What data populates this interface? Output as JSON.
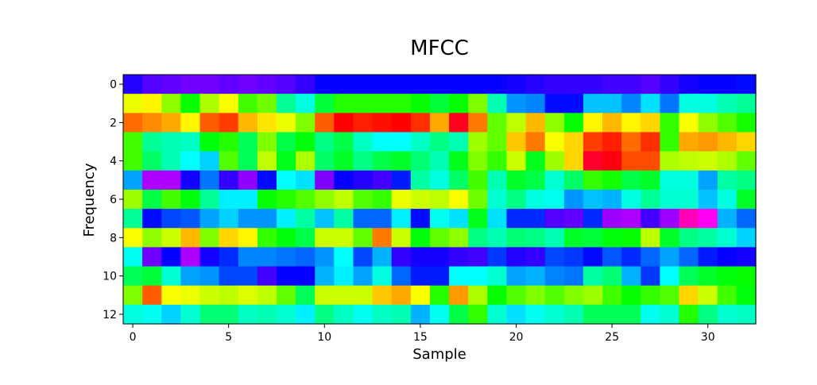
{
  "chart_data": {
    "type": "heatmap",
    "title": "MFCC",
    "xlabel": "Sample",
    "ylabel": "Frequency",
    "x_ticks": [
      "0",
      "5",
      "10",
      "15",
      "20",
      "25",
      "30"
    ],
    "y_ticks": [
      "0",
      "2",
      "4",
      "6",
      "8",
      "10",
      "12"
    ],
    "n_cols": 33,
    "n_rows": 13,
    "colormap": "hsv (value 0 = red, 0.25 = yellow-green, 0.5 = cyan, 0.75 = blue/violet)",
    "values": [
      [
        0.69,
        0.72,
        0.73,
        0.74,
        0.74,
        0.73,
        0.74,
        0.73,
        0.72,
        0.7,
        0.67,
        0.67,
        0.67,
        0.67,
        0.67,
        0.67,
        0.67,
        0.67,
        0.67,
        0.67,
        0.68,
        0.69,
        0.7,
        0.7,
        0.7,
        0.71,
        0.71,
        0.72,
        0.7,
        0.68,
        0.67,
        0.67,
        0.66
      ],
      [
        0.18,
        0.16,
        0.24,
        0.33,
        0.22,
        0.17,
        0.29,
        0.26,
        0.43,
        0.48,
        0.37,
        0.31,
        0.31,
        0.31,
        0.31,
        0.33,
        0.37,
        0.33,
        0.25,
        0.45,
        0.57,
        0.58,
        0.66,
        0.66,
        0.54,
        0.54,
        0.58,
        0.52,
        0.59,
        0.48,
        0.48,
        0.45,
        0.43
      ],
      [
        0.07,
        0.09,
        0.11,
        0.16,
        0.06,
        0.04,
        0.12,
        0.15,
        0.18,
        0.25,
        0.06,
        0.0,
        0.02,
        0.01,
        0.0,
        0.03,
        0.11,
        0.98,
        0.08,
        0.27,
        0.21,
        0.12,
        0.24,
        0.33,
        0.16,
        0.12,
        0.16,
        0.14,
        0.3,
        0.17,
        0.24,
        0.28,
        0.32
      ],
      [
        0.29,
        0.43,
        0.45,
        0.46,
        0.34,
        0.31,
        0.39,
        0.25,
        0.38,
        0.34,
        0.42,
        0.38,
        0.46,
        0.5,
        0.5,
        0.46,
        0.42,
        0.45,
        0.23,
        0.27,
        0.13,
        0.08,
        0.17,
        0.14,
        0.04,
        0.02,
        0.07,
        0.03,
        0.3,
        0.11,
        0.1,
        0.12,
        0.14
      ],
      [
        0.29,
        0.4,
        0.45,
        0.5,
        0.53,
        0.28,
        0.39,
        0.21,
        0.35,
        0.22,
        0.4,
        0.36,
        0.42,
        0.38,
        0.36,
        0.41,
        0.45,
        0.35,
        0.25,
        0.3,
        0.2,
        0.35,
        0.23,
        0.14,
        0.97,
        0.99,
        0.05,
        0.05,
        0.22,
        0.21,
        0.2,
        0.22,
        0.27
      ],
      [
        0.56,
        0.78,
        0.78,
        0.68,
        0.59,
        0.7,
        0.76,
        0.66,
        0.5,
        0.52,
        0.75,
        0.67,
        0.69,
        0.71,
        0.65,
        0.44,
        0.48,
        0.4,
        0.29,
        0.45,
        0.36,
        0.38,
        0.47,
        0.4,
        0.3,
        0.32,
        0.38,
        0.36,
        0.48,
        0.48,
        0.56,
        0.44,
        0.42
      ],
      [
        0.23,
        0.38,
        0.29,
        0.34,
        0.43,
        0.51,
        0.51,
        0.33,
        0.31,
        0.28,
        0.24,
        0.21,
        0.28,
        0.3,
        0.18,
        0.2,
        0.21,
        0.17,
        0.26,
        0.47,
        0.42,
        0.48,
        0.49,
        0.57,
        0.54,
        0.55,
        0.48,
        0.43,
        0.47,
        0.47,
        0.54,
        0.48,
        0.36
      ],
      [
        0.43,
        0.66,
        0.62,
        0.61,
        0.56,
        0.53,
        0.57,
        0.57,
        0.51,
        0.44,
        0.54,
        0.44,
        0.6,
        0.6,
        0.51,
        0.66,
        0.49,
        0.52,
        0.35,
        0.52,
        0.64,
        0.64,
        0.72,
        0.73,
        0.64,
        0.77,
        0.78,
        0.71,
        0.77,
        0.88,
        0.84,
        0.55,
        0.6
      ],
      [
        0.17,
        0.24,
        0.2,
        0.12,
        0.25,
        0.14,
        0.16,
        0.3,
        0.34,
        0.38,
        0.2,
        0.2,
        0.27,
        0.08,
        0.2,
        0.34,
        0.27,
        0.24,
        0.42,
        0.45,
        0.41,
        0.42,
        0.45,
        0.36,
        0.37,
        0.34,
        0.33,
        0.21,
        0.36,
        0.42,
        0.44,
        0.47,
        0.53
      ],
      [
        0.49,
        0.74,
        0.67,
        0.78,
        0.68,
        0.64,
        0.58,
        0.58,
        0.59,
        0.6,
        0.57,
        0.5,
        0.62,
        0.55,
        0.7,
        0.68,
        0.68,
        0.7,
        0.71,
        0.63,
        0.69,
        0.7,
        0.62,
        0.63,
        0.66,
        0.61,
        0.64,
        0.6,
        0.56,
        0.6,
        0.65,
        0.67,
        0.68
      ],
      [
        0.39,
        0.37,
        0.47,
        0.56,
        0.57,
        0.62,
        0.62,
        0.71,
        0.67,
        0.67,
        0.55,
        0.51,
        0.56,
        0.48,
        0.6,
        0.65,
        0.65,
        0.5,
        0.5,
        0.47,
        0.56,
        0.55,
        0.58,
        0.59,
        0.44,
        0.41,
        0.55,
        0.63,
        0.5,
        0.39,
        0.36,
        0.34,
        0.33
      ],
      [
        0.25,
        0.06,
        0.17,
        0.18,
        0.2,
        0.21,
        0.19,
        0.21,
        0.27,
        0.39,
        0.2,
        0.2,
        0.2,
        0.13,
        0.11,
        0.17,
        0.31,
        0.1,
        0.22,
        0.33,
        0.28,
        0.25,
        0.28,
        0.25,
        0.23,
        0.29,
        0.33,
        0.3,
        0.28,
        0.14,
        0.2,
        0.29,
        0.34
      ],
      [
        0.48,
        0.49,
        0.53,
        0.47,
        0.41,
        0.41,
        0.46,
        0.45,
        0.47,
        0.51,
        0.42,
        0.46,
        0.49,
        0.46,
        0.45,
        0.55,
        0.49,
        0.38,
        0.3,
        0.47,
        0.52,
        0.49,
        0.47,
        0.45,
        0.39,
        0.39,
        0.39,
        0.49,
        0.47,
        0.31,
        0.42,
        0.47,
        0.46
      ]
    ]
  }
}
